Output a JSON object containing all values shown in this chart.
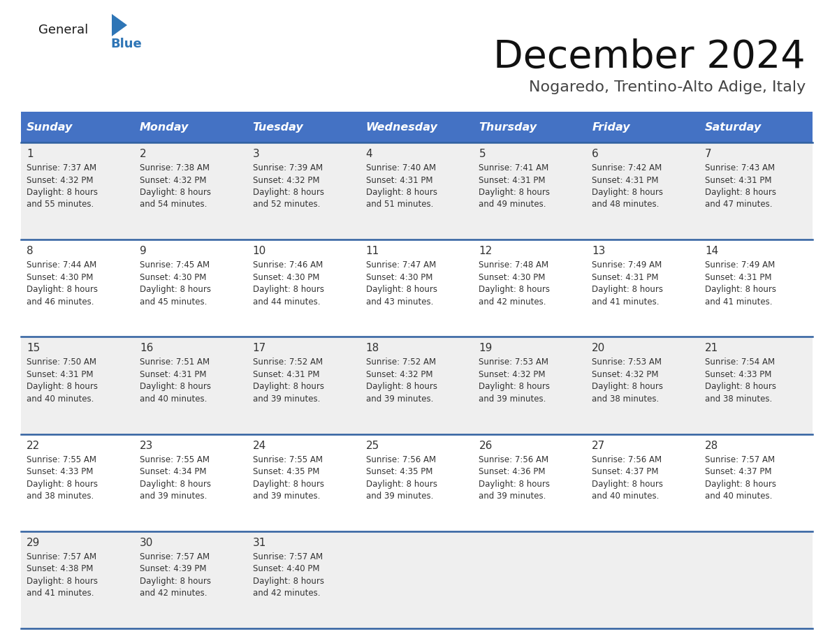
{
  "title": "December 2024",
  "subtitle": "Nogaredo, Trentino-Alto Adige, Italy",
  "header_color": "#4472C4",
  "header_text_color": "#FFFFFF",
  "days_of_week": [
    "Sunday",
    "Monday",
    "Tuesday",
    "Wednesday",
    "Thursday",
    "Friday",
    "Saturday"
  ],
  "row_bg_even": "#EFEFEF",
  "row_bg_odd": "#FFFFFF",
  "divider_color": "#3060A0",
  "text_color": "#333333",
  "logo_general_color": "#1a1a1a",
  "logo_blue_color": "#2E75B6",
  "logo_triangle_color": "#2E75B6",
  "title_color": "#111111",
  "subtitle_color": "#444444",
  "calendar_data": [
    [
      {
        "day": 1,
        "sunrise": "7:37 AM",
        "sunset": "4:32 PM",
        "minutes": "55"
      },
      {
        "day": 2,
        "sunrise": "7:38 AM",
        "sunset": "4:32 PM",
        "minutes": "54"
      },
      {
        "day": 3,
        "sunrise": "7:39 AM",
        "sunset": "4:32 PM",
        "minutes": "52"
      },
      {
        "day": 4,
        "sunrise": "7:40 AM",
        "sunset": "4:31 PM",
        "minutes": "51"
      },
      {
        "day": 5,
        "sunrise": "7:41 AM",
        "sunset": "4:31 PM",
        "minutes": "49"
      },
      {
        "day": 6,
        "sunrise": "7:42 AM",
        "sunset": "4:31 PM",
        "minutes": "48"
      },
      {
        "day": 7,
        "sunrise": "7:43 AM",
        "sunset": "4:31 PM",
        "minutes": "47"
      }
    ],
    [
      {
        "day": 8,
        "sunrise": "7:44 AM",
        "sunset": "4:30 PM",
        "minutes": "46"
      },
      {
        "day": 9,
        "sunrise": "7:45 AM",
        "sunset": "4:30 PM",
        "minutes": "45"
      },
      {
        "day": 10,
        "sunrise": "7:46 AM",
        "sunset": "4:30 PM",
        "minutes": "44"
      },
      {
        "day": 11,
        "sunrise": "7:47 AM",
        "sunset": "4:30 PM",
        "minutes": "43"
      },
      {
        "day": 12,
        "sunrise": "7:48 AM",
        "sunset": "4:30 PM",
        "minutes": "42"
      },
      {
        "day": 13,
        "sunrise": "7:49 AM",
        "sunset": "4:31 PM",
        "minutes": "41"
      },
      {
        "day": 14,
        "sunrise": "7:49 AM",
        "sunset": "4:31 PM",
        "minutes": "41"
      }
    ],
    [
      {
        "day": 15,
        "sunrise": "7:50 AM",
        "sunset": "4:31 PM",
        "minutes": "40"
      },
      {
        "day": 16,
        "sunrise": "7:51 AM",
        "sunset": "4:31 PM",
        "minutes": "40"
      },
      {
        "day": 17,
        "sunrise": "7:52 AM",
        "sunset": "4:31 PM",
        "minutes": "39"
      },
      {
        "day": 18,
        "sunrise": "7:52 AM",
        "sunset": "4:32 PM",
        "minutes": "39"
      },
      {
        "day": 19,
        "sunrise": "7:53 AM",
        "sunset": "4:32 PM",
        "minutes": "39"
      },
      {
        "day": 20,
        "sunrise": "7:53 AM",
        "sunset": "4:32 PM",
        "minutes": "38"
      },
      {
        "day": 21,
        "sunrise": "7:54 AM",
        "sunset": "4:33 PM",
        "minutes": "38"
      }
    ],
    [
      {
        "day": 22,
        "sunrise": "7:55 AM",
        "sunset": "4:33 PM",
        "minutes": "38"
      },
      {
        "day": 23,
        "sunrise": "7:55 AM",
        "sunset": "4:34 PM",
        "minutes": "39"
      },
      {
        "day": 24,
        "sunrise": "7:55 AM",
        "sunset": "4:35 PM",
        "minutes": "39"
      },
      {
        "day": 25,
        "sunrise": "7:56 AM",
        "sunset": "4:35 PM",
        "minutes": "39"
      },
      {
        "day": 26,
        "sunrise": "7:56 AM",
        "sunset": "4:36 PM",
        "minutes": "39"
      },
      {
        "day": 27,
        "sunrise": "7:56 AM",
        "sunset": "4:37 PM",
        "minutes": "40"
      },
      {
        "day": 28,
        "sunrise": "7:57 AM",
        "sunset": "4:37 PM",
        "minutes": "40"
      }
    ],
    [
      {
        "day": 29,
        "sunrise": "7:57 AM",
        "sunset": "4:38 PM",
        "minutes": "41"
      },
      {
        "day": 30,
        "sunrise": "7:57 AM",
        "sunset": "4:39 PM",
        "minutes": "42"
      },
      {
        "day": 31,
        "sunrise": "7:57 AM",
        "sunset": "4:40 PM",
        "minutes": "42"
      },
      null,
      null,
      null,
      null
    ]
  ]
}
